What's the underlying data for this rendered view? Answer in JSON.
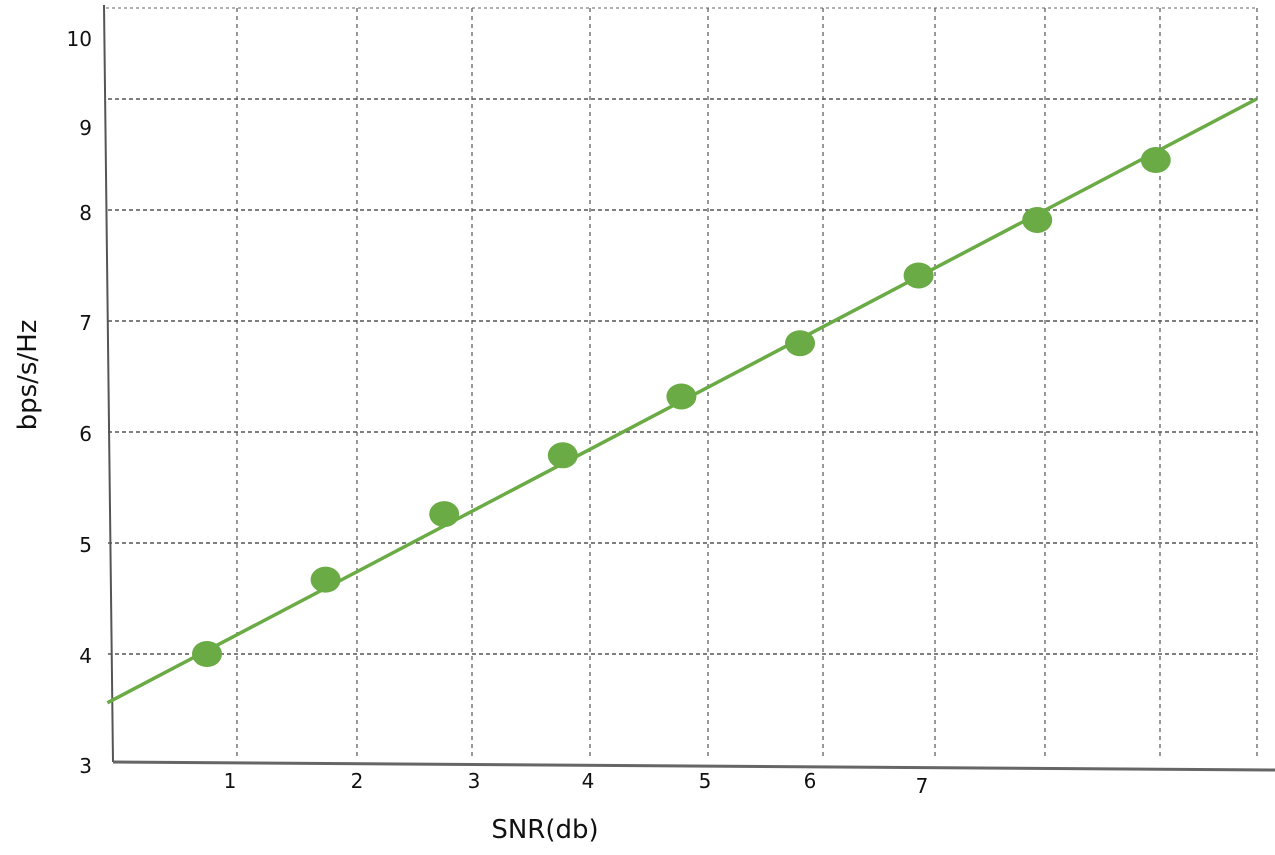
{
  "chart_data": {
    "type": "line",
    "title": "",
    "xlabel": "SNR(db)",
    "ylabel": "bps/s/Hz",
    "x_tick_labels": [
      "1",
      "2",
      "3",
      "4",
      "5",
      "6",
      "7"
    ],
    "y_tick_labels": [
      "3",
      "4",
      "5",
      "6",
      "7",
      "8",
      "9",
      "10"
    ],
    "ylim": [
      3,
      10
    ],
    "grid": true,
    "series": [
      {
        "x": [
          1,
          2,
          3,
          4,
          5,
          6,
          7,
          8,
          9
        ],
        "y": [
          4.0,
          4.67,
          5.26,
          5.79,
          6.32,
          6.8,
          7.41,
          7.91,
          8.45
        ],
        "color": "#6aab45",
        "marker": "circle",
        "line_extent": [
          [
            0.16,
            3.56
          ],
          [
            9.85,
            9.0
          ]
        ]
      }
    ]
  }
}
